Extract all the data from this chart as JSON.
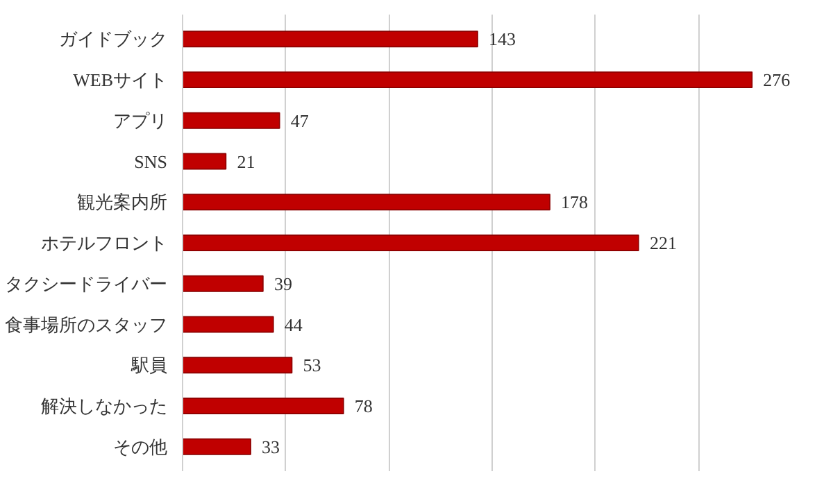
{
  "chart_data": {
    "type": "bar",
    "orientation": "horizontal",
    "categories": [
      "ガイドブック",
      "WEBサイト",
      "アプリ",
      "SNS",
      "観光案内所",
      "ホテルフロント",
      "タクシードライバー",
      "食事場所のスタッフ",
      "駅員",
      "解決しなかった",
      "その他"
    ],
    "values": [
      143,
      276,
      47,
      21,
      178,
      221,
      39,
      44,
      53,
      78,
      33
    ],
    "color": "#c00000",
    "grid": "x",
    "tick_labels": "y",
    "data_labels": true
  }
}
